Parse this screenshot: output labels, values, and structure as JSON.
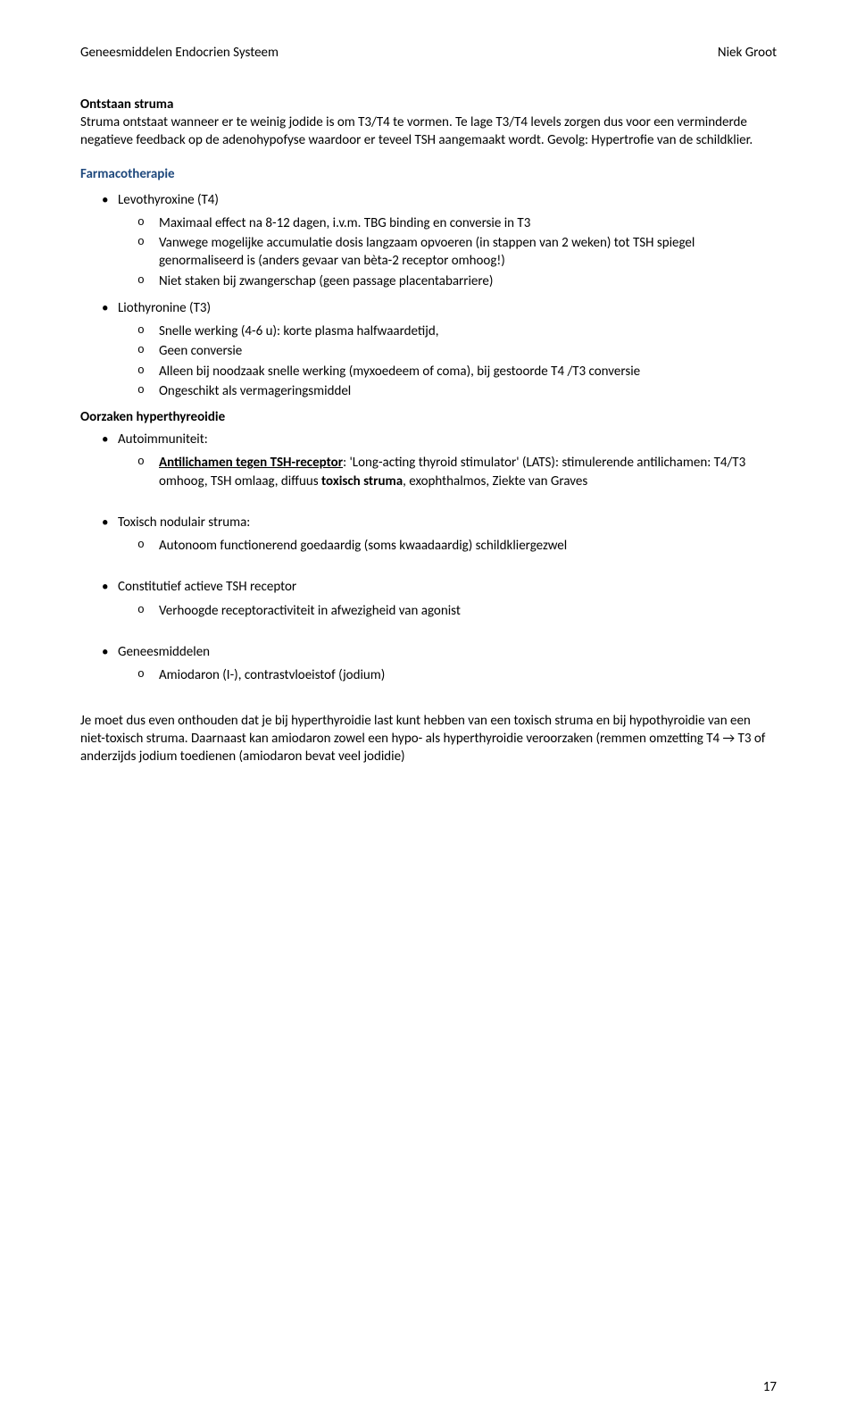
{
  "header": {
    "left": "Geneesmiddelen Endocrien Systeem",
    "right": "Niek Groot"
  },
  "ontstaan": {
    "title": "Ontstaan struma",
    "text": "Struma ontstaat wanneer er te weinig jodide is om T3/T4 te vormen. Te lage T3/T4 levels zorgen dus voor een verminderde negatieve feedback op de adenohypofyse waardoor er teveel TSH aangemaakt wordt. Gevolg: Hypertrofie van de schildklier."
  },
  "farmaco": {
    "title": "Farmacotherapie",
    "levo": {
      "name": "Levothyroxine (T4)",
      "s1": "Maximaal effect na 8-12 dagen, i.v.m. TBG binding  en conversie in T3",
      "s2": "Vanwege mogelijke accumulatie dosis langzaam  opvoeren (in stappen van 2 weken) tot TSH spiegel  genormaliseerd is (anders gevaar van bèta-2 receptor omhoog!)",
      "s3": "Niet staken bij zwangerschap (geen passage  placentabarriere)"
    },
    "lio": {
      "name": "Liothyronine (T3)",
      "s1": "Snelle werking (4-6 u): korte plasma halfwaardetijd,",
      "s2": "Geen conversie",
      "s3": "Alleen bij noodzaak snelle werking (myxoedeem of coma), bij gestoorde T4 /T3 conversie",
      "s4": "Ongeschikt als vermageringsmiddel"
    }
  },
  "oorzaken": {
    "title": "Oorzaken hyperthyreoidie",
    "auto": {
      "name": "Autoimmuniteit:",
      "lead_bold_ul": "Antilichamen tegen TSH-receptor",
      "rest1": ": 'Long-acting thyroid stimulator' (LATS): stimulerende antilichamen: T4/T3 omhoog, TSH omlaag, diffuus ",
      "rest_bold": "toxisch struma",
      "rest2": ", exophthalmos, Ziekte van Graves"
    },
    "tox": {
      "name": "Toxisch nodulair struma:",
      "s1": "Autonoom functionerend goedaardig (soms kwaadaardig)  schildkliergezwel"
    },
    "const": {
      "name": "Constitutief actieve TSH receptor",
      "s1": "Verhoogde receptoractiviteit in afwezigheid van agonist"
    },
    "genees": {
      "name": "Geneesmiddelen",
      "s1": "Amiodaron (I-), contrastvloeistof (jodium)"
    }
  },
  "closing": {
    "text": "Je moet dus even onthouden dat je bij hyperthyroidie last kunt hebben van een toxisch struma en bij hypothyroidie van een niet-toxisch struma. Daarnaast kan amiodaron zowel een hypo- als hyperthyroidie veroorzaken (remmen omzetting T4 → T3 of anderzijds jodium toedienen (amiodaron bevat veel jodidie)"
  },
  "page_number": "17"
}
